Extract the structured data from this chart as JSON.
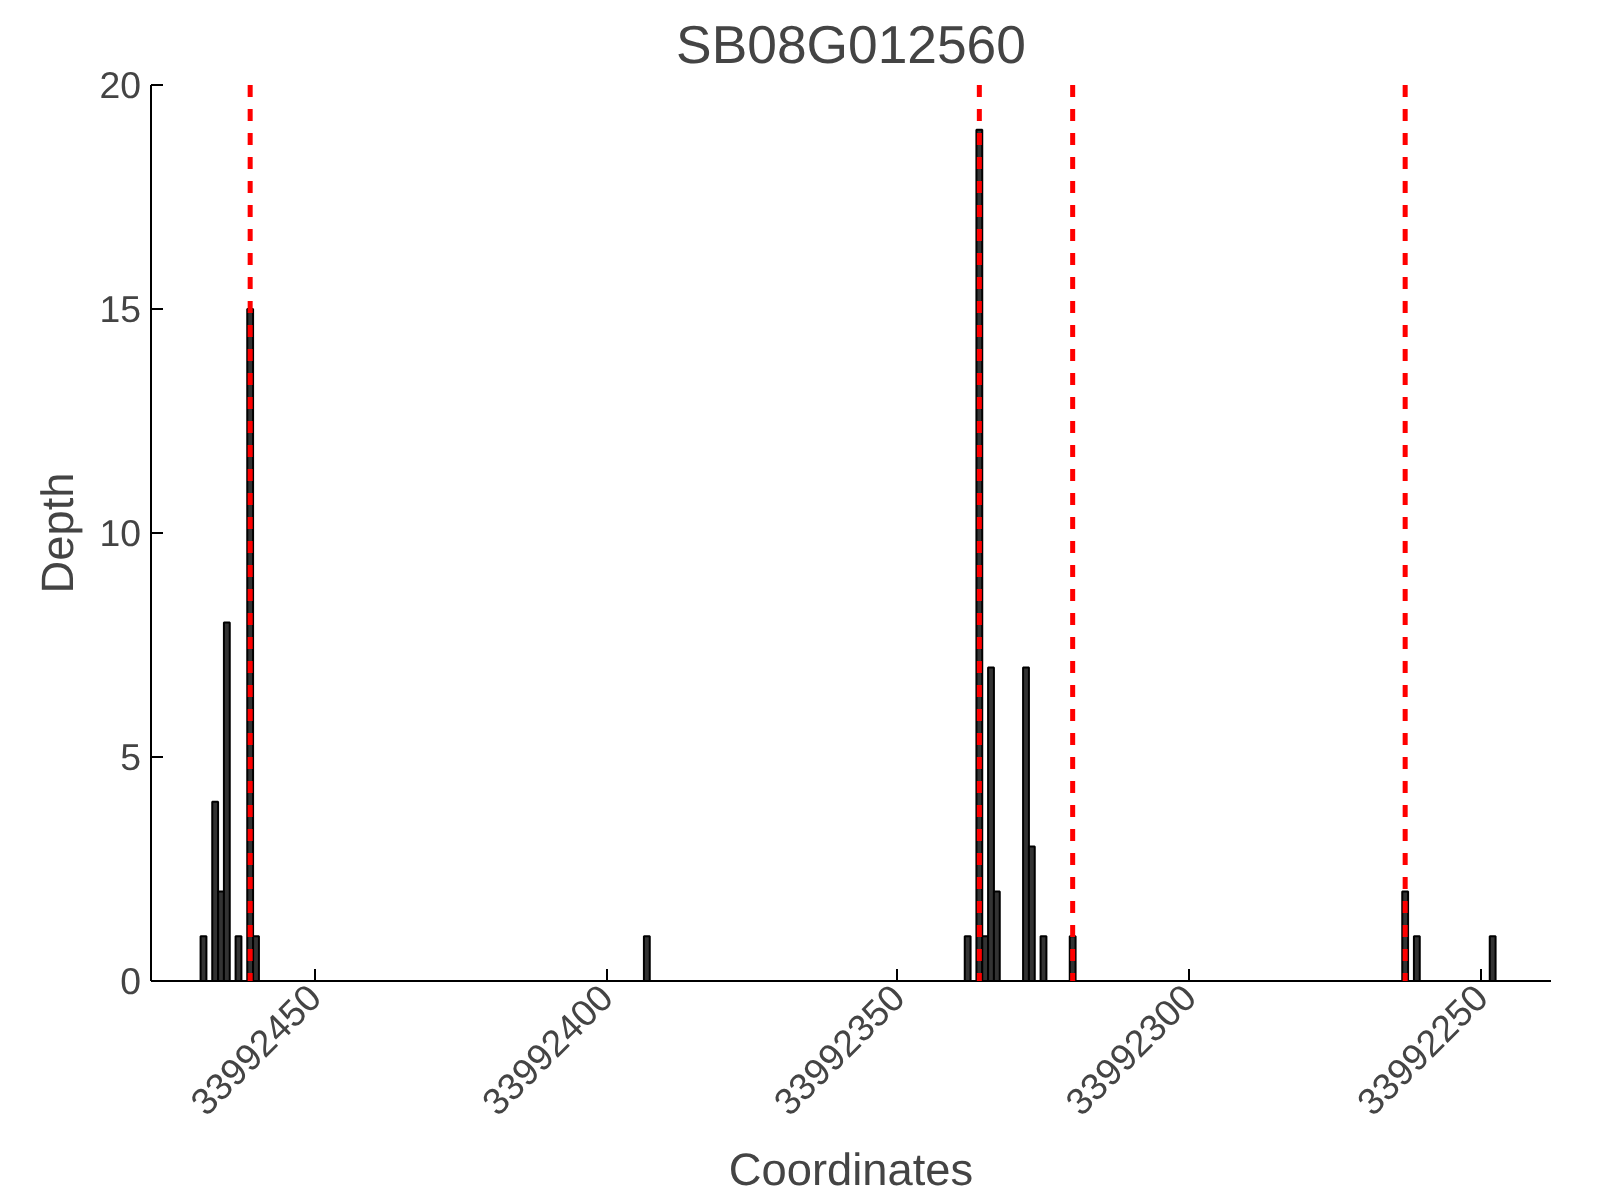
{
  "chart_data": {
    "type": "bar",
    "title": "SB08G012560",
    "xlabel": "Coordinates",
    "ylabel": "Depth",
    "x": [
      33992469,
      33992467,
      33992466,
      33992465,
      33992463,
      33992461,
      33992460,
      33992393,
      33992338,
      33992336,
      33992335,
      33992334,
      33992333,
      33992328,
      33992327,
      33992325,
      33992320,
      33992263,
      33992261,
      33992248
    ],
    "values": [
      1,
      4,
      2,
      8,
      1,
      15,
      1,
      1,
      1,
      19,
      1,
      7,
      2,
      7,
      3,
      1,
      1,
      2,
      1,
      1
    ],
    "color": "#333333",
    "xlim": [
      33992478,
      33992238
    ],
    "xticks": [
      33992450,
      33992400,
      33992350,
      33992300,
      33992250
    ],
    "ylim": [
      0,
      20
    ],
    "yticks": [
      0,
      5,
      10,
      15,
      20
    ],
    "ref_lines": [
      {
        "axis": "x",
        "value": 33992461,
        "color": "#ff0000",
        "line_style": "dashed"
      },
      {
        "axis": "x",
        "value": 33992336,
        "color": "#ff0000",
        "line_style": "dashed"
      },
      {
        "axis": "x",
        "value": 33992320,
        "color": "#ff0000",
        "line_style": "dashed"
      },
      {
        "axis": "x",
        "value": 33992263,
        "color": "#ff0000",
        "line_style": "dashed"
      }
    ],
    "grid": false
  }
}
